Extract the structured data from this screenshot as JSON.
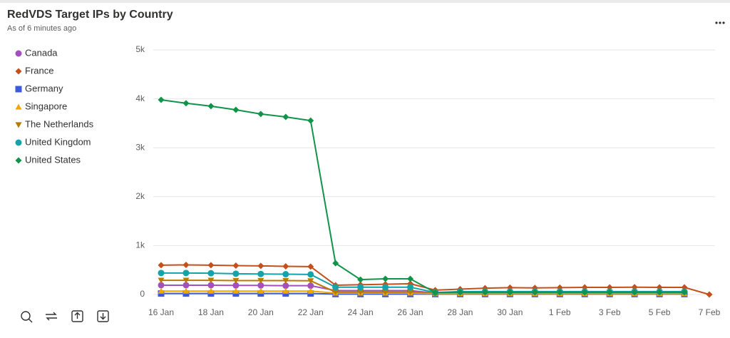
{
  "chart_data": {
    "type": "line",
    "title": "RedVDS Target IPs by Country",
    "subtitle": "As of 6 minutes ago",
    "categories": [
      "16 Jan",
      null,
      "18 Jan",
      null,
      "20 Jan",
      null,
      "22 Jan",
      null,
      "24 Jan",
      null,
      "26 Jan",
      null,
      "28 Jan",
      null,
      "30 Jan",
      null,
      "1 Feb",
      null,
      "3 Feb",
      null,
      "5 Feb",
      null,
      "7 Feb"
    ],
    "ylim": [
      0,
      5000
    ],
    "yticks": [
      0,
      {
        "value": 1000,
        "label": "1k"
      },
      {
        "value": 2000,
        "label": "2k"
      },
      {
        "value": 3000,
        "label": "3k"
      },
      {
        "value": 4000,
        "label": "4k"
      },
      {
        "value": 5000,
        "label": "5k"
      }
    ],
    "grid": true,
    "legend": "left",
    "series": [
      {
        "name": "Canada",
        "color": "#a34fc0",
        "marker": "circle",
        "values": [
          190,
          190,
          190,
          185,
          185,
          180,
          180,
          80,
          80,
          80,
          80,
          30,
          30,
          30,
          30,
          30,
          30,
          30,
          30,
          30,
          30,
          30,
          null
        ]
      },
      {
        "name": "France",
        "color": "#c4501c",
        "marker": "diamond",
        "values": [
          600,
          605,
          600,
          590,
          585,
          575,
          570,
          190,
          200,
          210,
          220,
          90,
          110,
          130,
          140,
          135,
          140,
          145,
          145,
          150,
          145,
          145,
          0
        ]
      },
      {
        "name": "Germany",
        "color": "#3d5bd9",
        "marker": "square",
        "values": [
          20,
          20,
          20,
          20,
          20,
          20,
          20,
          10,
          10,
          10,
          10,
          10,
          10,
          10,
          10,
          10,
          10,
          10,
          10,
          10,
          10,
          10,
          null
        ]
      },
      {
        "name": "Singapore",
        "color": "#f0a800",
        "marker": "triangle",
        "values": [
          70,
          70,
          70,
          70,
          70,
          70,
          70,
          30,
          30,
          30,
          30,
          20,
          20,
          20,
          20,
          20,
          20,
          20,
          20,
          20,
          20,
          20,
          null
        ]
      },
      {
        "name": "The Netherlands",
        "color": "#b97a00",
        "marker": "triangle-down",
        "values": [
          290,
          290,
          290,
          285,
          285,
          285,
          280,
          50,
          50,
          50,
          50,
          40,
          40,
          40,
          40,
          40,
          40,
          40,
          40,
          40,
          40,
          40,
          null
        ]
      },
      {
        "name": "United Kingdom",
        "color": "#13a3a8",
        "marker": "circle",
        "values": [
          440,
          440,
          435,
          425,
          420,
          415,
          410,
          150,
          150,
          150,
          150,
          40,
          60,
          60,
          60,
          60,
          60,
          60,
          60,
          60,
          60,
          60,
          null
        ]
      },
      {
        "name": "United States",
        "color": "#11944a",
        "marker": "diamond",
        "values": [
          3980,
          3910,
          3850,
          3775,
          3690,
          3630,
          3555,
          640,
          305,
          320,
          320,
          40,
          45,
          45,
          45,
          45,
          45,
          45,
          45,
          45,
          45,
          45,
          null
        ]
      }
    ]
  }
}
